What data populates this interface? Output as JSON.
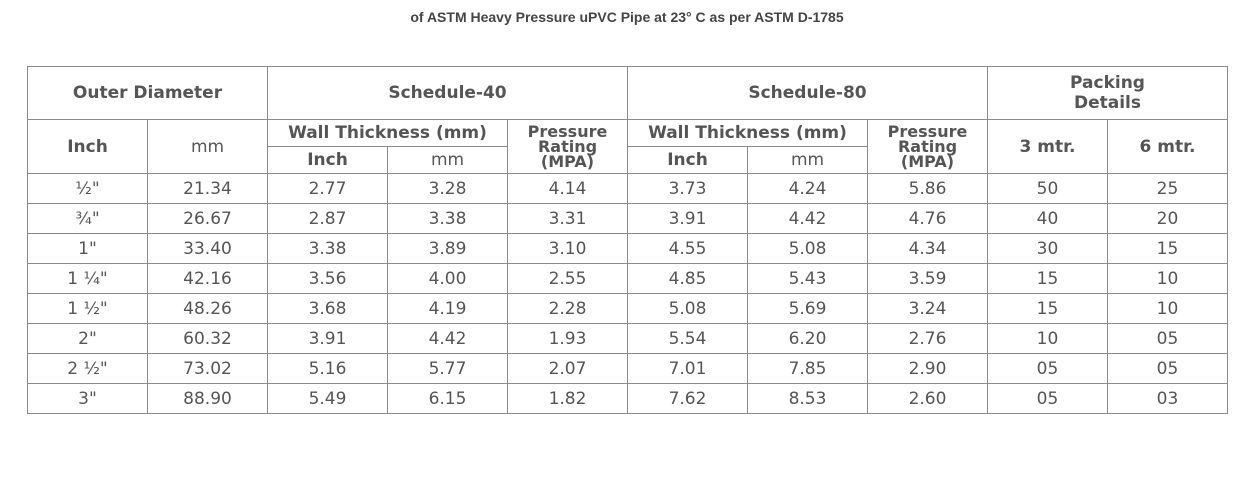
{
  "title": "of ASTM Heavy Pressure uPVC Pipe at 23° C as per ASTM D-1785",
  "headers": {
    "outer_diameter": "Outer Diameter",
    "schedule_40": "Schedule-40",
    "schedule_80": "Schedule-80",
    "packing_line1": "Packing",
    "packing_line2": "Details",
    "inch": "Inch",
    "mm": "mm",
    "wall_thickness": "Wall Thickness (mm)",
    "pressure_line1": "Pressure",
    "pressure_line2": "Rating",
    "pressure_line3": "(MPA)",
    "pack_3m": "3 mtr.",
    "pack_6m": "6 mtr."
  },
  "rows": [
    [
      "½\"",
      "21.34",
      "2.77",
      "3.28",
      "4.14",
      "3.73",
      "4.24",
      "5.86",
      "50",
      "25"
    ],
    [
      "¾\"",
      "26.67",
      "2.87",
      "3.38",
      "3.31",
      "3.91",
      "4.42",
      "4.76",
      "40",
      "20"
    ],
    [
      "1\"",
      "33.40",
      "3.38",
      "3.89",
      "3.10",
      "4.55",
      "5.08",
      "4.34",
      "30",
      "15"
    ],
    [
      "1 ¼\"",
      "42.16",
      "3.56",
      "4.00",
      "2.55",
      "4.85",
      "5.43",
      "3.59",
      "15",
      "10"
    ],
    [
      "1 ½\"",
      "48.26",
      "3.68",
      "4.19",
      "2.28",
      "5.08",
      "5.69",
      "3.24",
      "15",
      "10"
    ],
    [
      "2\"",
      "60.32",
      "3.91",
      "4.42",
      "1.93",
      "5.54",
      "6.20",
      "2.76",
      "10",
      "05"
    ],
    [
      "2 ½\"",
      "73.02",
      "5.16",
      "5.77",
      "2.07",
      "7.01",
      "7.85",
      "2.90",
      "05",
      "05"
    ],
    [
      "3\"",
      "88.90",
      "5.49",
      "6.15",
      "1.82",
      "7.62",
      "8.53",
      "2.60",
      "05",
      "03"
    ]
  ]
}
